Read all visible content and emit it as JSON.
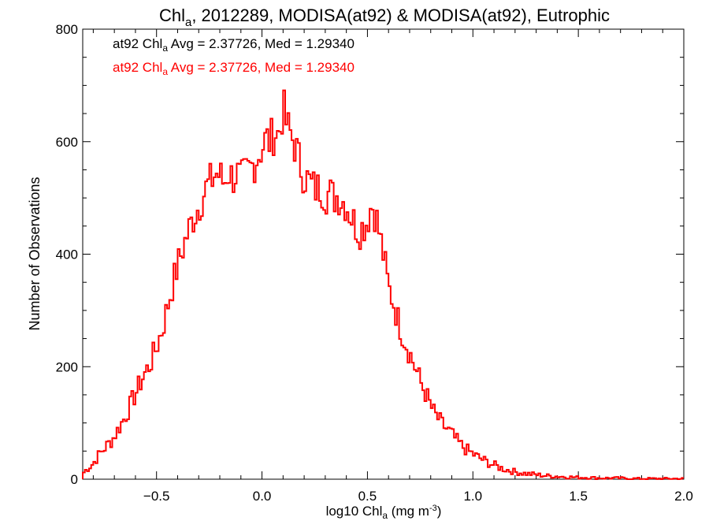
{
  "chart_data": {
    "type": "histogram",
    "title": {
      "prefix": "Chl",
      "subscript": "a",
      "suffix": ", 2012289, MODISA(at92) & MODISA(at92), Eutrophic"
    },
    "xlabel": {
      "prefix": "log10 Chl",
      "subscript": "a",
      "units": " (mg m",
      "units_sup": "-3",
      "close": ")"
    },
    "ylabel": "Number of Observations",
    "xlim": [
      -0.85,
      2.0
    ],
    "ylim": [
      0,
      800
    ],
    "x_ticks": [
      -0.5,
      0.0,
      0.5,
      1.0,
      1.5,
      2.0
    ],
    "x_tick_labels": [
      "−0.5",
      "0.0",
      "0.5",
      "1.0",
      "1.5",
      "2.0"
    ],
    "y_ticks": [
      0,
      200,
      400,
      600,
      800
    ],
    "y_tick_labels": [
      "0",
      "200",
      "400",
      "600",
      "800"
    ],
    "annotations": [
      {
        "prefix": "at92 Chl",
        "subscript": "a",
        "suffix": " Avg = 2.37726, Med = 1.29340",
        "color": "#000000"
      },
      {
        "prefix": "at92 Chl",
        "subscript": "a",
        "suffix": " Avg = 2.37726, Med = 1.29340",
        "color": "#ff0000"
      }
    ],
    "series": [
      {
        "color": "#ff0000",
        "bin_width": 0.01,
        "x_start": -0.85,
        "x": [
          -0.845,
          -0.83,
          -0.8,
          -0.77,
          -0.74,
          -0.71,
          -0.68,
          -0.65,
          -0.62,
          -0.59,
          -0.56,
          -0.53,
          -0.5,
          -0.47,
          -0.44,
          -0.41,
          -0.38,
          -0.35,
          -0.32,
          -0.3,
          -0.28,
          -0.26,
          -0.24,
          -0.22,
          -0.2,
          -0.18,
          -0.16,
          -0.14,
          -0.12,
          -0.1,
          -0.08,
          -0.06,
          -0.04,
          -0.02,
          0.0,
          0.02,
          0.04,
          0.06,
          0.08,
          0.1,
          0.12,
          0.14,
          0.16,
          0.18,
          0.2,
          0.22,
          0.24,
          0.26,
          0.28,
          0.3,
          0.32,
          0.34,
          0.36,
          0.38,
          0.4,
          0.42,
          0.44,
          0.46,
          0.48,
          0.5,
          0.52,
          0.54,
          0.56,
          0.58,
          0.6,
          0.62,
          0.64,
          0.66,
          0.68,
          0.7,
          0.72,
          0.74,
          0.76,
          0.78,
          0.8,
          0.82,
          0.84,
          0.86,
          0.88,
          0.9,
          0.92,
          0.94,
          0.96,
          0.98,
          1.0,
          1.02,
          1.04,
          1.06,
          1.08,
          1.1,
          1.12,
          1.14,
          1.16,
          1.18,
          1.2,
          1.25,
          1.3,
          1.35,
          1.4,
          1.45,
          1.5,
          1.55,
          1.6,
          1.65,
          1.7,
          1.75,
          1.8,
          1.85,
          1.9,
          1.95,
          2.0
        ],
        "y": [
          12,
          18,
          28,
          45,
          58,
          70,
          90,
          110,
          135,
          160,
          185,
          205,
          235,
          270,
          320,
          365,
          405,
          440,
          470,
          485,
          505,
          520,
          530,
          545,
          540,
          525,
          550,
          535,
          545,
          530,
          540,
          550,
          560,
          575,
          590,
          605,
          600,
          620,
          610,
          660,
          625,
          610,
          590,
          560,
          540,
          530,
          520,
          515,
          520,
          505,
          510,
          500,
          505,
          495,
          490,
          470,
          455,
          440,
          450,
          460,
          490,
          470,
          430,
          390,
          340,
          320,
          290,
          265,
          245,
          225,
          205,
          185,
          165,
          150,
          130,
          115,
          105,
          95,
          88,
          80,
          70,
          62,
          55,
          50,
          45,
          40,
          36,
          32,
          28,
          25,
          22,
          19,
          17,
          15,
          13,
          10,
          8,
          6,
          5,
          4,
          3,
          3,
          2,
          2,
          2,
          1,
          1,
          1,
          1,
          1,
          1
        ]
      }
    ]
  }
}
